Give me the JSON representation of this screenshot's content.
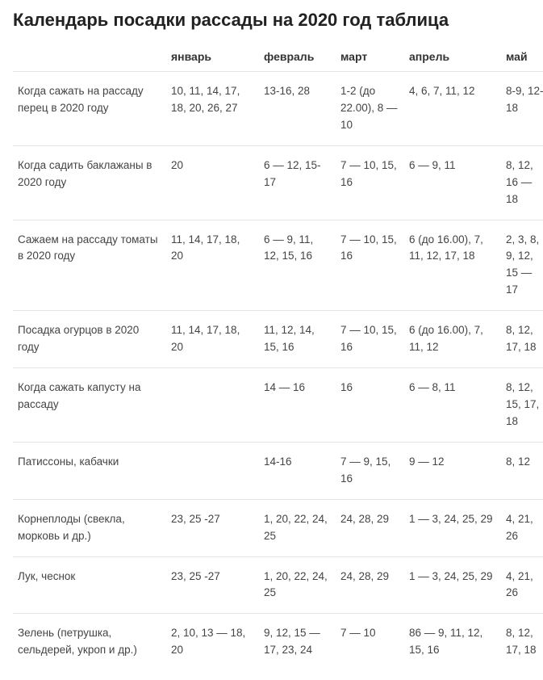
{
  "title": "Календарь посадки рассады на 2020 год таблица",
  "columns": [
    "",
    "январь",
    "февраль",
    "март",
    "апрель",
    "май"
  ],
  "rows": [
    {
      "label": "Когда сажать на рассаду перец в 2020 году",
      "cells": [
        "10, 11, 14, 17, 18, 20, 26, 27",
        "13-16, 28",
        "1-2 (до 22.00), 8 — 10",
        "4, 6, 7, 11, 12",
        "8-9, 12-18"
      ]
    },
    {
      "label": "Когда садить баклажаны в 2020 году",
      "cells": [
        "20",
        "6 — 12, 15-17",
        "7 — 10, 15, 16",
        " 6 — 9, 11",
        "8, 12, 16 — 18"
      ]
    },
    {
      "label": "Сажаем на рассаду томаты в 2020 году",
      "cells": [
        "11, 14, 17, 18, 20",
        "6 — 9, 11, 12, 15, 16",
        "7 — 10, 15, 16",
        "6 (до 16.00), 7, 11, 12, 17, 18",
        "2, 3, 8, 9, 12, 15 — 17"
      ]
    },
    {
      "label": "Посадка огурцов в 2020 году",
      "cells": [
        "11, 14, 17, 18, 20",
        "11, 12, 14, 15, 16",
        "7 — 10, 15, 16",
        "6 (до 16.00), 7, 11, 12",
        "8, 12, 17, 18"
      ]
    },
    {
      "label": "Когда сажать капусту на рассаду",
      "cells": [
        "",
        "14 — 16",
        "16",
        "6 — 8, 11",
        " 8, 12, 15, 17, 18"
      ]
    },
    {
      "label": "Патиссоны, кабачки",
      "cells": [
        "",
        "14-16",
        "7 — 9, 15, 16",
        "9 — 12",
        "8, 12"
      ]
    },
    {
      "label": "Корнеплоды (свекла, морковь и др.)",
      "cells": [
        "23, 25 -27",
        "1, 20, 22, 24, 25",
        "24, 28, 29",
        "1 — 3, 24, 25, 29",
        "4, 21, 26"
      ]
    },
    {
      "label": "Лук, чеснок",
      "cells": [
        "23, 25 -27",
        "1, 20, 22, 24, 25",
        "24, 28, 29",
        "1 — 3, 24, 25, 29",
        "4, 21, 26"
      ]
    },
    {
      "label": "Зелень (петрушка, сельдерей, укроп и др.)",
      "cells": [
        "2, 10, 13 — 18, 20",
        "9, 12, 15 — 17, 23, 24",
        "7 — 10",
        "86 — 9, 11, 12, 15, 16",
        "8, 12, 17, 18"
      ]
    }
  ],
  "styling": {
    "background_color": "#ffffff",
    "text_color": "#333333",
    "border_color": "#e4e4e4",
    "title_fontsize": 22,
    "header_fontsize": 14,
    "cell_fontsize": 13.5,
    "font_family": "Arial"
  }
}
